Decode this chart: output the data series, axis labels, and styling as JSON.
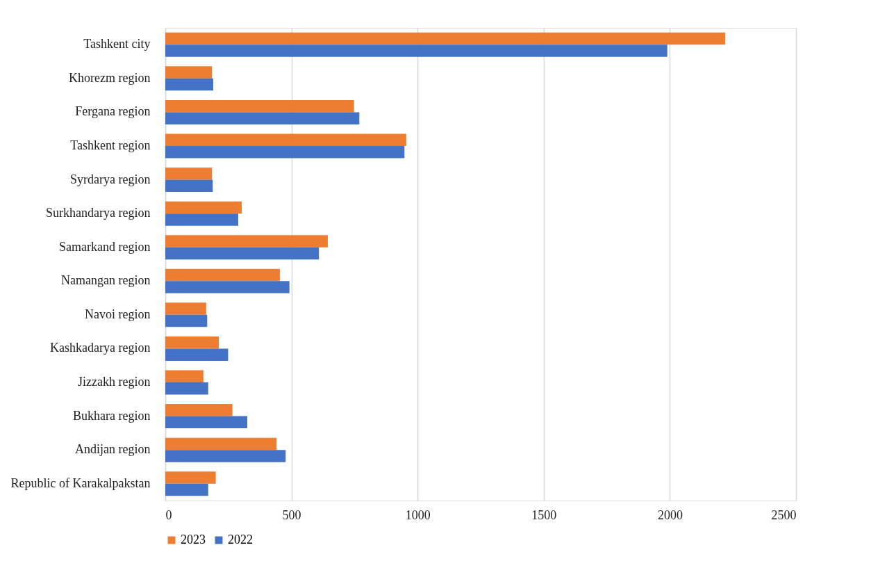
{
  "chart_data": {
    "type": "bar",
    "orientation": "horizontal",
    "categories": [
      "Tashkent city",
      "Khorezm region",
      "Fergana region",
      "Tashkent region",
      "Syrdarya region",
      "Surkhandarya region",
      "Samarkand region",
      "Namangan region",
      "Navoi region",
      "Kashkadarya region",
      "Jizzakh region",
      "Bukhara region",
      "Andijan region",
      "Republic of Karakalpakstan"
    ],
    "series": [
      {
        "name": "2023",
        "color": "#ed7d31",
        "values": [
          2220,
          185,
          748,
          955,
          185,
          303,
          644,
          454,
          162,
          212,
          151,
          266,
          441,
          200
        ]
      },
      {
        "name": "2022",
        "color": "#4472c4",
        "values": [
          1990,
          190,
          769,
          948,
          188,
          289,
          609,
          492,
          166,
          249,
          170,
          325,
          477,
          170
        ]
      }
    ],
    "xlim": [
      0,
      2500
    ],
    "xticks": [
      0,
      500,
      1000,
      1500,
      2000,
      2500
    ],
    "grid": "x",
    "legend": "bottom"
  }
}
